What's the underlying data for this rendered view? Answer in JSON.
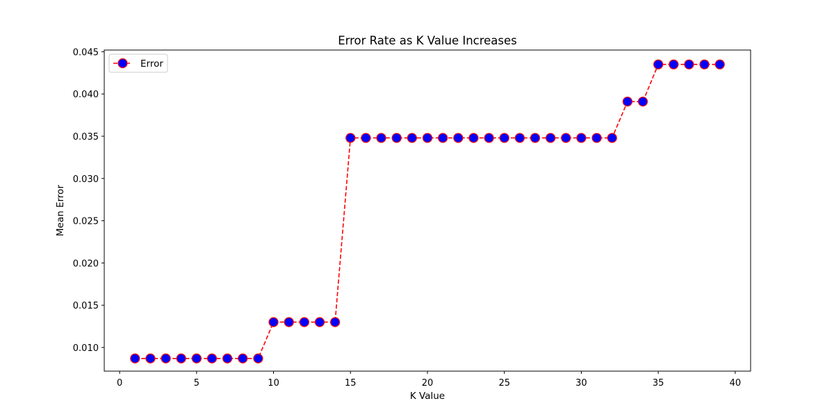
{
  "chart_data": {
    "type": "line",
    "title": "Error Rate as K Value Increases",
    "xlabel": "K Value",
    "ylabel": "Mean Error",
    "xlim": [
      -1,
      41
    ],
    "ylim": [
      0.0072,
      0.0452
    ],
    "xticks": [
      0,
      5,
      10,
      15,
      20,
      25,
      30,
      35,
      40
    ],
    "yticks": [
      0.01,
      0.015,
      0.02,
      0.025,
      0.03,
      0.035,
      0.04,
      0.045
    ],
    "ytick_labels": [
      "0.010",
      "0.015",
      "0.020",
      "0.025",
      "0.030",
      "0.035",
      "0.040",
      "0.045"
    ],
    "legend_position": "top-left",
    "grid": false,
    "series": [
      {
        "name": "Error",
        "line_color": "#ff0000",
        "line_style": "dashed",
        "marker": "circle",
        "marker_face_color": "#0000ff",
        "marker_edge_color": "#ff0000",
        "x": [
          1,
          2,
          3,
          4,
          5,
          6,
          7,
          8,
          9,
          10,
          11,
          12,
          13,
          14,
          15,
          16,
          17,
          18,
          19,
          20,
          21,
          22,
          23,
          24,
          25,
          26,
          27,
          28,
          29,
          30,
          31,
          32,
          33,
          34,
          35,
          36,
          37,
          38,
          39
        ],
        "values": [
          0.0087,
          0.0087,
          0.0087,
          0.0087,
          0.0087,
          0.0087,
          0.0087,
          0.0087,
          0.0087,
          0.013,
          0.013,
          0.013,
          0.013,
          0.013,
          0.0348,
          0.0348,
          0.0348,
          0.0348,
          0.0348,
          0.0348,
          0.0348,
          0.0348,
          0.0348,
          0.0348,
          0.0348,
          0.0348,
          0.0348,
          0.0348,
          0.0348,
          0.0348,
          0.0348,
          0.0348,
          0.0391,
          0.0391,
          0.0435,
          0.0435,
          0.0435,
          0.0435,
          0.0435
        ]
      }
    ]
  }
}
